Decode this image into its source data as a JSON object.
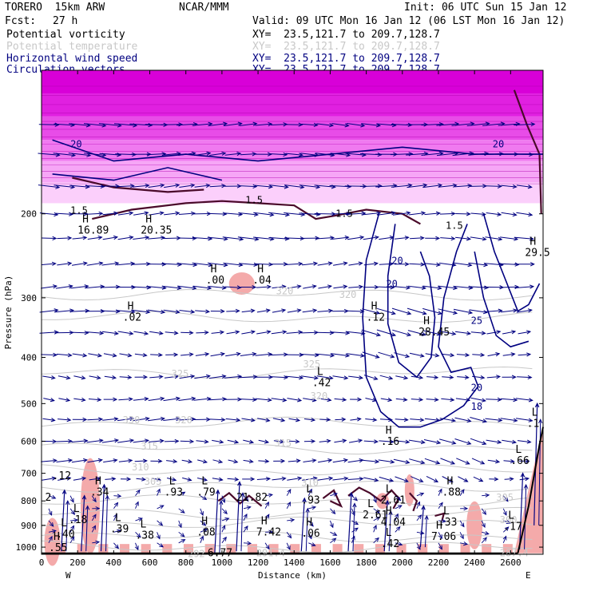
{
  "header": {
    "model": "TORERO  15km ARW",
    "org": "NCAR/MMM",
    "init": "Init: 06 UTC Sun 15 Jan 12",
    "fcst_label": "Fcst:",
    "fcst_value": "27 h",
    "valid": "Valid: 09 UTC Mon 16 Jan 12 (06 LST Mon 16 Jan 12)"
  },
  "legend": [
    {
      "name": "Potential vorticity",
      "xy": "XY=  23.5,121.7 to 209.7,128.7",
      "color": "#000000"
    },
    {
      "name": "Potential temperature",
      "xy": "XY=  23.5,121.7 to 209.7,128.7",
      "color": "#c8c8c8"
    },
    {
      "name": "Horizontal wind speed",
      "xy": "XY=  23.5,121.7 to 209.7,128.7",
      "color": "#000080"
    },
    {
      "name": "Circulation vectors",
      "xy": "XY=  23.5,121.7 to 209.7,128.7",
      "color": "#000080"
    }
  ],
  "colors": {
    "pv_high": "#ff00ff",
    "pv_low": "#f4aaaa",
    "theta": "#c8c8c8",
    "wind": "#000080",
    "pv_contour": "#4a0a2a",
    "terrain": "#000000"
  },
  "chart_data": {
    "type": "cross-section",
    "xlabel": "Distance (km)",
    "ylabel": "Pressure (hPa)",
    "xlim": [
      0,
      2780
    ],
    "ylim": [
      100,
      1035
    ],
    "y_scale": "log",
    "x_ticks": [
      "0",
      "200",
      "400",
      "600",
      "800",
      "1000",
      "1200",
      "1400",
      "1600",
      "1800",
      "2000",
      "2200",
      "2400",
      "2600"
    ],
    "y_ticks": [
      "200",
      "300",
      "400",
      "500",
      "600",
      "700",
      "800",
      "900",
      "1000"
    ],
    "x_end_labels": {
      "left": "W",
      "right": "E"
    },
    "theta_labels": [
      {
        "text": "325",
        "x": 720,
        "p": 440
      },
      {
        "text": "325",
        "x": 1450,
        "p": 420
      },
      {
        "text": "320",
        "x": 1490,
        "p": 490
      },
      {
        "text": "330",
        "x": 450,
        "p": 550
      },
      {
        "text": "320",
        "x": 740,
        "p": 550
      },
      {
        "text": "315",
        "x": 1290,
        "p": 615
      },
      {
        "text": "315",
        "x": 550,
        "p": 625
      },
      {
        "text": "310",
        "x": 500,
        "p": 690
      },
      {
        "text": "305",
        "x": 570,
        "p": 740
      },
      {
        "text": "310",
        "x": 1440,
        "p": 745
      },
      {
        "text": "305",
        "x": 2520,
        "p": 800
      },
      {
        "text": "300",
        "x": 2540,
        "p": 890
      },
      {
        "text": "292",
        "x": 810,
        "p": 1050
      },
      {
        "text": "291.4",
        "x": 1190,
        "p": 1045
      },
      {
        "text": "287.4",
        "x": 2540,
        "p": 1045
      },
      {
        "text": "320",
        "x": 1300,
        "p": 295
      },
      {
        "text": "320",
        "x": 1650,
        "p": 300
      }
    ],
    "wind_labels": [
      {
        "text": "20",
        "x": 160,
        "p": 145,
        "side": "left"
      },
      {
        "text": "20",
        "x": 2500,
        "p": 145,
        "side": "right"
      },
      {
        "text": "20",
        "x": 1940,
        "p": 255
      },
      {
        "text": "20",
        "x": 1910,
        "p": 285
      },
      {
        "text": "25",
        "x": 2380,
        "p": 340
      },
      {
        "text": "20",
        "x": 2380,
        "p": 470
      },
      {
        "text": "18",
        "x": 2380,
        "p": 515
      }
    ],
    "pv_labels": [
      {
        "text": "1.5",
        "x": 160,
        "p": 200
      },
      {
        "text": "1.5",
        "x": 1130,
        "p": 190
      },
      {
        "text": "1.5",
        "x": 1630,
        "p": 203
      },
      {
        "text": "1.5",
        "x": 2240,
        "p": 215
      }
    ],
    "extrema": [
      {
        "mark": "H",
        "value": "16.89",
        "x": 200,
        "p": 220
      },
      {
        "mark": "H",
        "value": "20.35",
        "x": 550,
        "p": 220
      },
      {
        "mark": "H",
        "value": ".00",
        "x": 910,
        "p": 280
      },
      {
        "mark": "H",
        "value": ".04",
        "x": 1170,
        "p": 280
      },
      {
        "mark": "H",
        "value": ".02",
        "x": 450,
        "p": 335
      },
      {
        "mark": "H",
        "value": ".12",
        "x": 1800,
        "p": 335
      },
      {
        "mark": "H",
        "value": "28.45",
        "x": 2090,
        "p": 360
      },
      {
        "mark": "H",
        "value": "29.5",
        "x": 2680,
        "p": 245
      },
      {
        "mark": "L",
        "value": ".42",
        "x": 1500,
        "p": 460
      },
      {
        "mark": "L",
        "value": ".1",
        "x": 2690,
        "p": 560
      },
      {
        "mark": "H",
        "value": ".16",
        "x": 1880,
        "p": 610
      },
      {
        "mark": "L",
        "value": ".66",
        "x": 2600,
        "p": 670
      },
      {
        "mark": "",
        "value": ".12",
        "x": 60,
        "p": 720
      },
      {
        "mark": "",
        "value": "2",
        "x": 20,
        "p": 800
      },
      {
        "mark": "H",
        "value": ".34",
        "x": 270,
        "p": 780
      },
      {
        "mark": "L",
        "value": ".93",
        "x": 680,
        "p": 780
      },
      {
        "mark": "L",
        "value": ".79",
        "x": 860,
        "p": 780
      },
      {
        "mark": "",
        "value": "21.82",
        "x": 1080,
        "p": 800
      },
      {
        "mark": "L",
        "value": ".93",
        "x": 1440,
        "p": 810
      },
      {
        "mark": "L",
        "value": "2.61",
        "x": 1880,
        "p": 810
      },
      {
        "mark": "H",
        "value": ".88",
        "x": 2220,
        "p": 780
      },
      {
        "mark": "L",
        "value": "2.61",
        "x": 1780,
        "p": 870
      },
      {
        "mark": "H",
        "value": "4.04",
        "x": 1880,
        "p": 900
      },
      {
        "mark": "L",
        "value": ".33",
        "x": 2200,
        "p": 900
      },
      {
        "mark": "L",
        "value": ".18",
        "x": 150,
        "p": 890
      },
      {
        "mark": "L",
        "value": ".40",
        "x": 80,
        "p": 955
      },
      {
        "mark": "L",
        "value": ".39",
        "x": 380,
        "p": 930
      },
      {
        "mark": "L",
        "value": ".38",
        "x": 520,
        "p": 960
      },
      {
        "mark": "H",
        "value": ".08",
        "x": 860,
        "p": 945
      },
      {
        "mark": "H",
        "value": "7.42",
        "x": 1190,
        "p": 945
      },
      {
        "mark": "H",
        "value": ".06",
        "x": 1440,
        "p": 950
      },
      {
        "mark": "H",
        "value": "7.06",
        "x": 2160,
        "p": 965
      },
      {
        "mark": "L",
        "value": ".17",
        "x": 2560,
        "p": 920
      },
      {
        "mark": "L",
        "value": ".42",
        "x": 1880,
        "p": 1000
      },
      {
        "mark": "H",
        "value": ".55",
        "x": 40,
        "p": 1020
      },
      {
        "mark": "",
        "value": "6.77",
        "x": 920,
        "p": 1045
      }
    ]
  }
}
